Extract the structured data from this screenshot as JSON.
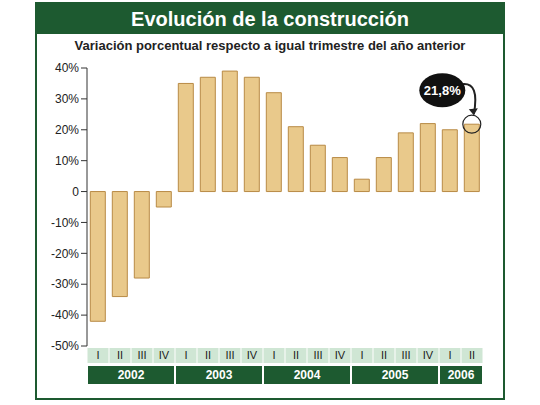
{
  "chart_data": {
    "type": "bar",
    "title": "Evolución de la construcción",
    "subtitle": "Variación porcentual respecto a igual trimestre del año anterior",
    "categories": [
      "I",
      "II",
      "III",
      "IV",
      "I",
      "II",
      "III",
      "IV",
      "I",
      "II",
      "III",
      "IV",
      "I",
      "II",
      "III",
      "IV",
      "I",
      "II"
    ],
    "groups": [
      {
        "label": "2002",
        "count": 4
      },
      {
        "label": "2003",
        "count": 4
      },
      {
        "label": "2004",
        "count": 4
      },
      {
        "label": "2005",
        "count": 4
      },
      {
        "label": "2006",
        "count": 2
      }
    ],
    "values": [
      -42,
      -34,
      -28,
      -5,
      35,
      37,
      39,
      37,
      32,
      21,
      15,
      11,
      4,
      11,
      19,
      22,
      20,
      21.8
    ],
    "color": "#e9c98b",
    "ylim": [
      -50,
      40
    ],
    "yticks": [
      {
        "value": -50,
        "label": "-50%"
      },
      {
        "value": -40,
        "label": "-40%"
      },
      {
        "value": -30,
        "label": "-30%"
      },
      {
        "value": -20,
        "label": "-20%"
      },
      {
        "value": -10,
        "label": "-10%"
      },
      {
        "value": 0,
        "label": "0"
      },
      {
        "value": 10,
        "label": "10%"
      },
      {
        "value": 20,
        "label": "20%"
      },
      {
        "value": 30,
        "label": "30%"
      },
      {
        "value": 40,
        "label": "40%"
      }
    ],
    "grid": false,
    "annotations": [
      {
        "text": "21,8%",
        "value": 21.8
      }
    ]
  }
}
